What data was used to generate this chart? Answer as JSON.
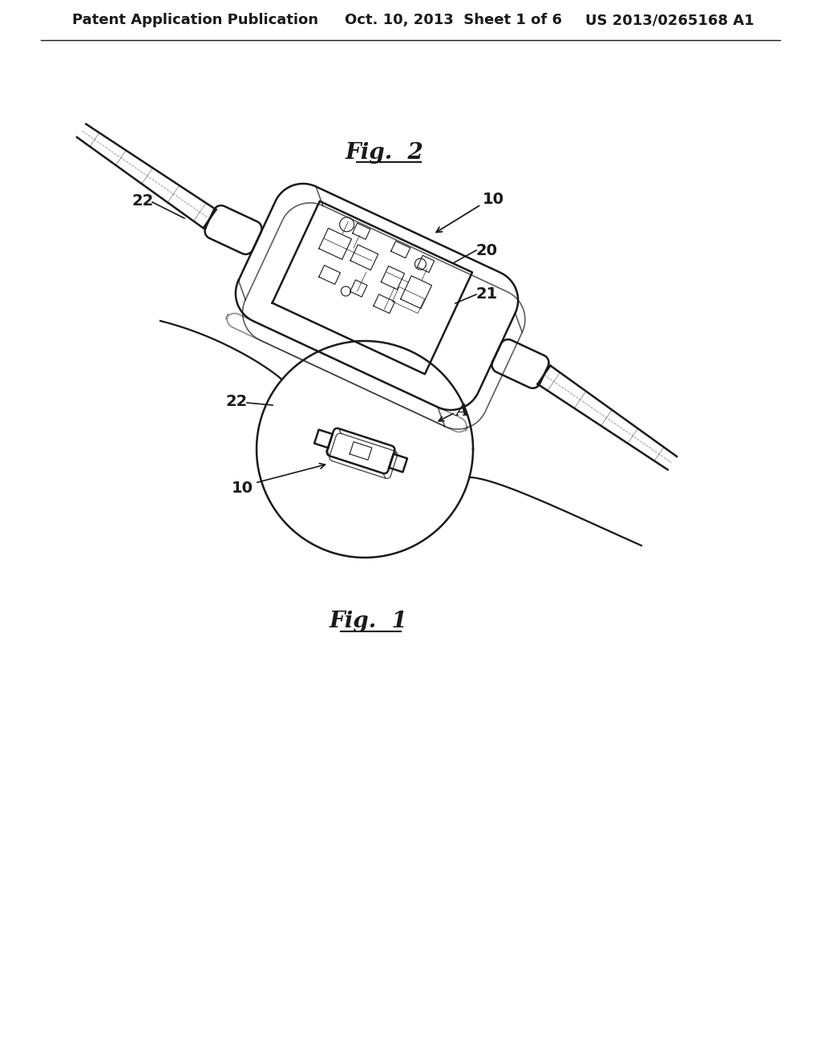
{
  "background_color": "#ffffff",
  "header_text": "Patent Application Publication",
  "header_date": "Oct. 10, 2013  Sheet 1 of 6",
  "header_patent": "US 2013/0265168 A1",
  "header_fontsize": 13,
  "label_color": "#1a1a1a",
  "line_color": "#1a1a1a",
  "fig2_title": "Fig.  2",
  "fig1_title": "Fig.  1"
}
